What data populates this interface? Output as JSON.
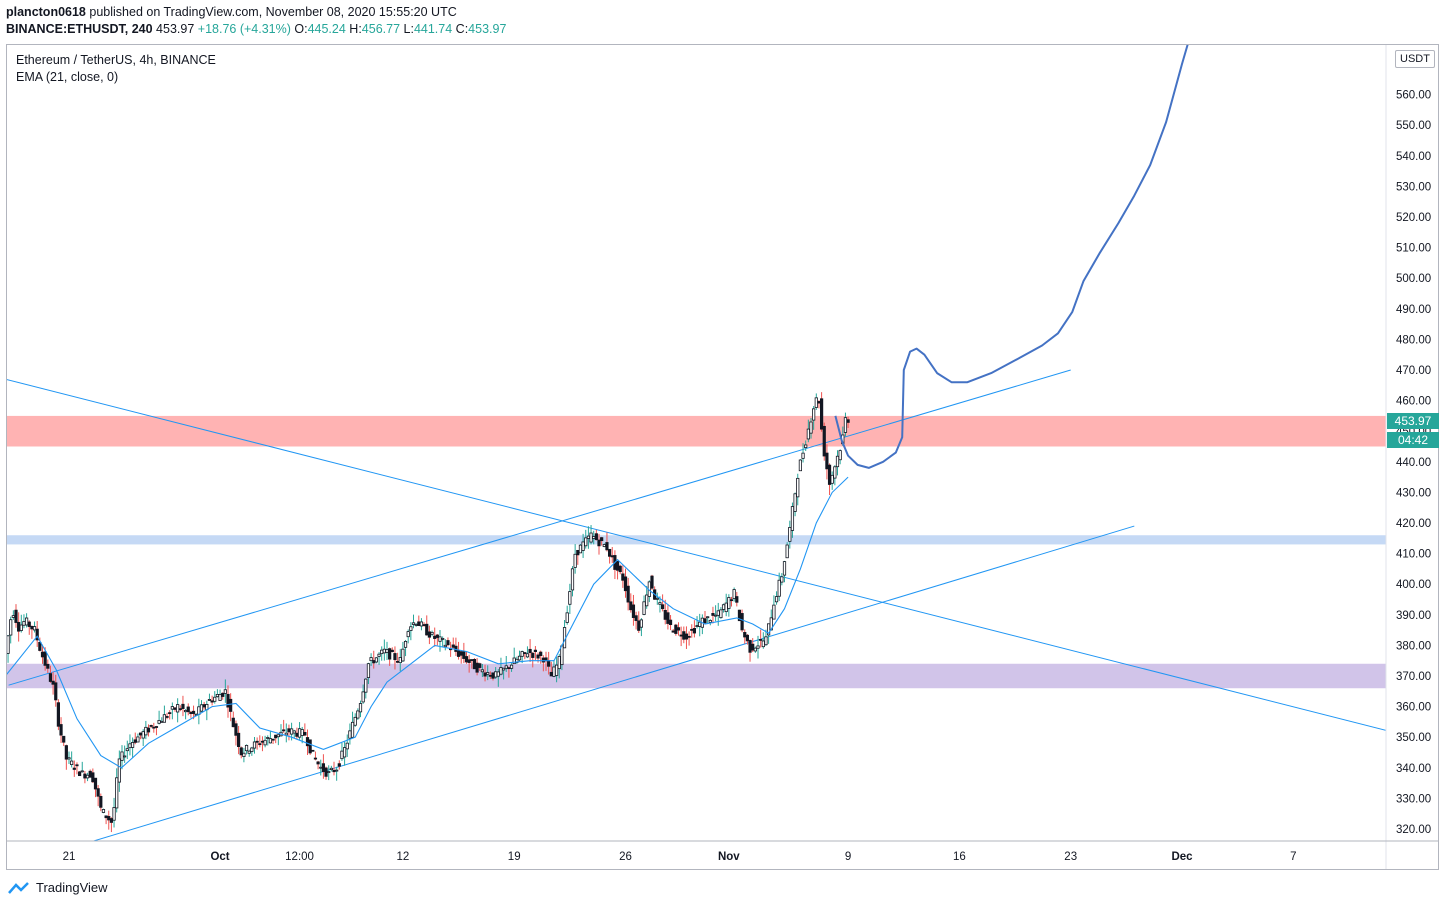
{
  "header": {
    "author": "plancton0618",
    "published_text": "published on TradingView.com, November 08, 2020 15:55:20 UTC",
    "symbol": "BINANCE:ETHUSDT, 240",
    "last_price": "453.97",
    "change": "+18.76 (+4.31%)",
    "o_label": "O:",
    "o_value": "445.24",
    "h_label": "H:",
    "h_value": "456.77",
    "l_label": "L:",
    "l_value": "441.74",
    "c_label": "C:",
    "c_value": "453.97"
  },
  "legend": {
    "title": "Ethereum / TetherUS, 4h, BINANCE",
    "indicator": "EMA (21, close, 0)"
  },
  "currency_badge": "USDT",
  "price_tag": {
    "price": "453.97",
    "countdown": "04:42"
  },
  "footer": {
    "brand": "TradingView"
  },
  "colors": {
    "up": "#26a69a",
    "candle_body": "#131722",
    "down_wick": "#ef5350",
    "trendline": "#2196f3",
    "drawing": "#4472c4",
    "red_zone": "#ffb3b3",
    "blue_zone": "#c5d9f5",
    "purple_zone": "#d1c4e9"
  },
  "chart_data": {
    "type": "candlestick",
    "ylim": [
      316,
      575
    ],
    "y_ticks": [
      "320.00",
      "330.00",
      "340.00",
      "350.00",
      "360.00",
      "370.00",
      "380.00",
      "390.00",
      "400.00",
      "410.00",
      "420.00",
      "430.00",
      "440.00",
      "450.00",
      "460.00",
      "470.00",
      "480.00",
      "490.00",
      "500.00",
      "510.00",
      "520.00",
      "530.00",
      "540.00",
      "550.00",
      "560.00"
    ],
    "x_ticks": [
      {
        "label": "21",
        "t": 0
      },
      {
        "label": "Oct",
        "t": 9.5
      },
      {
        "label": "12:00",
        "t": 14.5
      },
      {
        "label": "12",
        "t": 21
      },
      {
        "label": "19",
        "t": 28
      },
      {
        "label": "26",
        "t": 35
      },
      {
        "label": "Nov",
        "t": 41.5
      },
      {
        "label": "9",
        "t": 49
      },
      {
        "label": "16",
        "t": 56
      },
      {
        "label": "23",
        "t": 63
      },
      {
        "label": "Dec",
        "t": 70
      },
      {
        "label": "7",
        "t": 77
      }
    ],
    "x_unit": "days since Sep 21, 2020",
    "price_path": [
      [
        -4,
        372
      ],
      [
        -3.4,
        392
      ],
      [
        -3,
        386
      ],
      [
        -2.6,
        388
      ],
      [
        -2,
        385
      ],
      [
        -1.6,
        378
      ],
      [
        -0.8,
        366
      ],
      [
        -0.5,
        355
      ],
      [
        0,
        343
      ],
      [
        1,
        338
      ],
      [
        1.6,
        338
      ],
      [
        2.2,
        326
      ],
      [
        2.9,
        322
      ],
      [
        3.3,
        342
      ],
      [
        4,
        348
      ],
      [
        5,
        352
      ],
      [
        6,
        356
      ],
      [
        7,
        360
      ],
      [
        8,
        357
      ],
      [
        9,
        362
      ],
      [
        10,
        365
      ],
      [
        10.5,
        354
      ],
      [
        11,
        345
      ],
      [
        12,
        348
      ],
      [
        13,
        350
      ],
      [
        14,
        352
      ],
      [
        15,
        351
      ],
      [
        15.5,
        344
      ],
      [
        16,
        340
      ],
      [
        16.5,
        338
      ],
      [
        17,
        340
      ],
      [
        17.5,
        346
      ],
      [
        18,
        354
      ],
      [
        18.5,
        362
      ],
      [
        19,
        374
      ],
      [
        20,
        378
      ],
      [
        21,
        375
      ],
      [
        21.5,
        386
      ],
      [
        22,
        388
      ],
      [
        23,
        383
      ],
      [
        24,
        380
      ],
      [
        25,
        376
      ],
      [
        26,
        372
      ],
      [
        27,
        370
      ],
      [
        28,
        374
      ],
      [
        29,
        378
      ],
      [
        30,
        376
      ],
      [
        30.5,
        370
      ],
      [
        31,
        375
      ],
      [
        31.5,
        392
      ],
      [
        32,
        410
      ],
      [
        33,
        416
      ],
      [
        34,
        412
      ],
      [
        34.5,
        406
      ],
      [
        35,
        402
      ],
      [
        35.5,
        392
      ],
      [
        36,
        386
      ],
      [
        36.7,
        402
      ],
      [
        37,
        396
      ],
      [
        38,
        386
      ],
      [
        39,
        383
      ],
      [
        40,
        388
      ],
      [
        41,
        390
      ],
      [
        42,
        397
      ],
      [
        42.5,
        385
      ],
      [
        43,
        379
      ],
      [
        44,
        382
      ],
      [
        44.5,
        394
      ],
      [
        45,
        403
      ],
      [
        45.5,
        418
      ],
      [
        46,
        436
      ],
      [
        46.5,
        447
      ],
      [
        47,
        458
      ],
      [
        47.3,
        462
      ],
      [
        47.6,
        445
      ],
      [
        48,
        433
      ],
      [
        48.4,
        440
      ],
      [
        48.8,
        447
      ],
      [
        49,
        454
      ]
    ],
    "ema_path": [
      [
        -4,
        370
      ],
      [
        -2,
        383
      ],
      [
        -0.8,
        372
      ],
      [
        0.5,
        356
      ],
      [
        2,
        344
      ],
      [
        3.3,
        340
      ],
      [
        5,
        348
      ],
      [
        7,
        354
      ],
      [
        9,
        360
      ],
      [
        10.5,
        361
      ],
      [
        12,
        353
      ],
      [
        14,
        350
      ],
      [
        16,
        346
      ],
      [
        18,
        350
      ],
      [
        19,
        360
      ],
      [
        20,
        368
      ],
      [
        21,
        372
      ],
      [
        23,
        380
      ],
      [
        25,
        378
      ],
      [
        27,
        374
      ],
      [
        29,
        375
      ],
      [
        30.5,
        375
      ],
      [
        32,
        390
      ],
      [
        33,
        400
      ],
      [
        34.5,
        408
      ],
      [
        35.5,
        403
      ],
      [
        36.5,
        398
      ],
      [
        38,
        392
      ],
      [
        40,
        387
      ],
      [
        42,
        389
      ],
      [
        43,
        387
      ],
      [
        44,
        384
      ],
      [
        45,
        392
      ],
      [
        46,
        405
      ],
      [
        47,
        420
      ],
      [
        48,
        430
      ],
      [
        49,
        435
      ]
    ],
    "trendlines": [
      {
        "name": "descending-resistance",
        "from": [
          -4,
          467
        ],
        "to": [
          83,
          352
        ]
      },
      {
        "name": "upper-channel",
        "from": [
          -3.8,
          367
        ],
        "to": [
          63,
          470
        ]
      },
      {
        "name": "lower-channel",
        "from": [
          1.5,
          316
        ],
        "to": [
          67,
          419
        ]
      }
    ],
    "zones": [
      {
        "name": "resistance-zone",
        "y1": 445,
        "y2": 455,
        "color": "#ffb3b3"
      },
      {
        "name": "support-zone-blue",
        "y1": 413,
        "y2": 416,
        "color": "#c5d9f5"
      },
      {
        "name": "support-zone-purple",
        "y1": 366,
        "y2": 374,
        "color": "#d1c4e9"
      }
    ],
    "projection_path": [
      [
        48.2,
        455
      ],
      [
        48.6,
        447
      ],
      [
        49,
        442
      ],
      [
        49.6,
        439
      ],
      [
        50.3,
        438
      ],
      [
        51.2,
        440
      ],
      [
        52,
        443
      ],
      [
        52.4,
        448
      ],
      [
        52.5,
        470
      ],
      [
        52.9,
        476
      ],
      [
        53.3,
        477
      ],
      [
        53.8,
        475
      ],
      [
        54.6,
        469
      ],
      [
        55.5,
        466
      ],
      [
        56.5,
        466
      ],
      [
        58,
        469
      ],
      [
        59.8,
        474
      ],
      [
        61.2,
        478
      ],
      [
        62.2,
        482
      ],
      [
        63.1,
        489
      ],
      [
        63.8,
        499
      ],
      [
        64.8,
        508
      ],
      [
        66,
        518
      ],
      [
        67,
        527
      ],
      [
        68,
        537
      ],
      [
        69,
        551
      ],
      [
        70,
        570
      ],
      [
        70.5,
        579
      ]
    ]
  }
}
